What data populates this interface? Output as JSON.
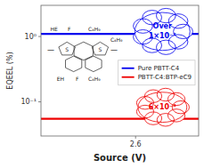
{
  "chart_data": {
    "type": "line",
    "xlabel": "Source (V)",
    "ylabel": "EQEEL (%)",
    "x": [
      2.0,
      3.0
    ],
    "series": [
      {
        "name": "Pure PBTT-C4",
        "color": "#0000ee",
        "values": [
          1.1,
          1.1
        ]
      },
      {
        "name": "PBTT-C4:BTP-eC9",
        "color": "#ee0000",
        "values": [
          0.055,
          0.055
        ]
      }
    ],
    "xlim": [
      2.0,
      3.0
    ],
    "xticks": [
      2.6
    ],
    "ylim": [
      0.03,
      3.0
    ],
    "yticks": [
      {
        "value": 0.1,
        "label": "10⁻¹"
      },
      {
        "value": 1,
        "label": "10⁰"
      }
    ],
    "log": "y",
    "grid": false,
    "legend": "right",
    "annotations": [
      {
        "text": "Over",
        "color": "#0000ee"
      },
      {
        "text": "1×10⁻²",
        "color": "#0000ee"
      },
      {
        "text": "6×10⁻⁴",
        "color": "#ee0000"
      },
      {
        "text": "HE"
      },
      {
        "text": "F"
      },
      {
        "text": "F"
      },
      {
        "text": "EH"
      },
      {
        "text": "C₄H₉"
      },
      {
        "text": "C₄H₉"
      },
      {
        "text": "C₄H₉"
      },
      {
        "text": "S"
      },
      {
        "text": "S"
      },
      {
        "text": "—"
      },
      {
        "text": "—"
      }
    ]
  }
}
